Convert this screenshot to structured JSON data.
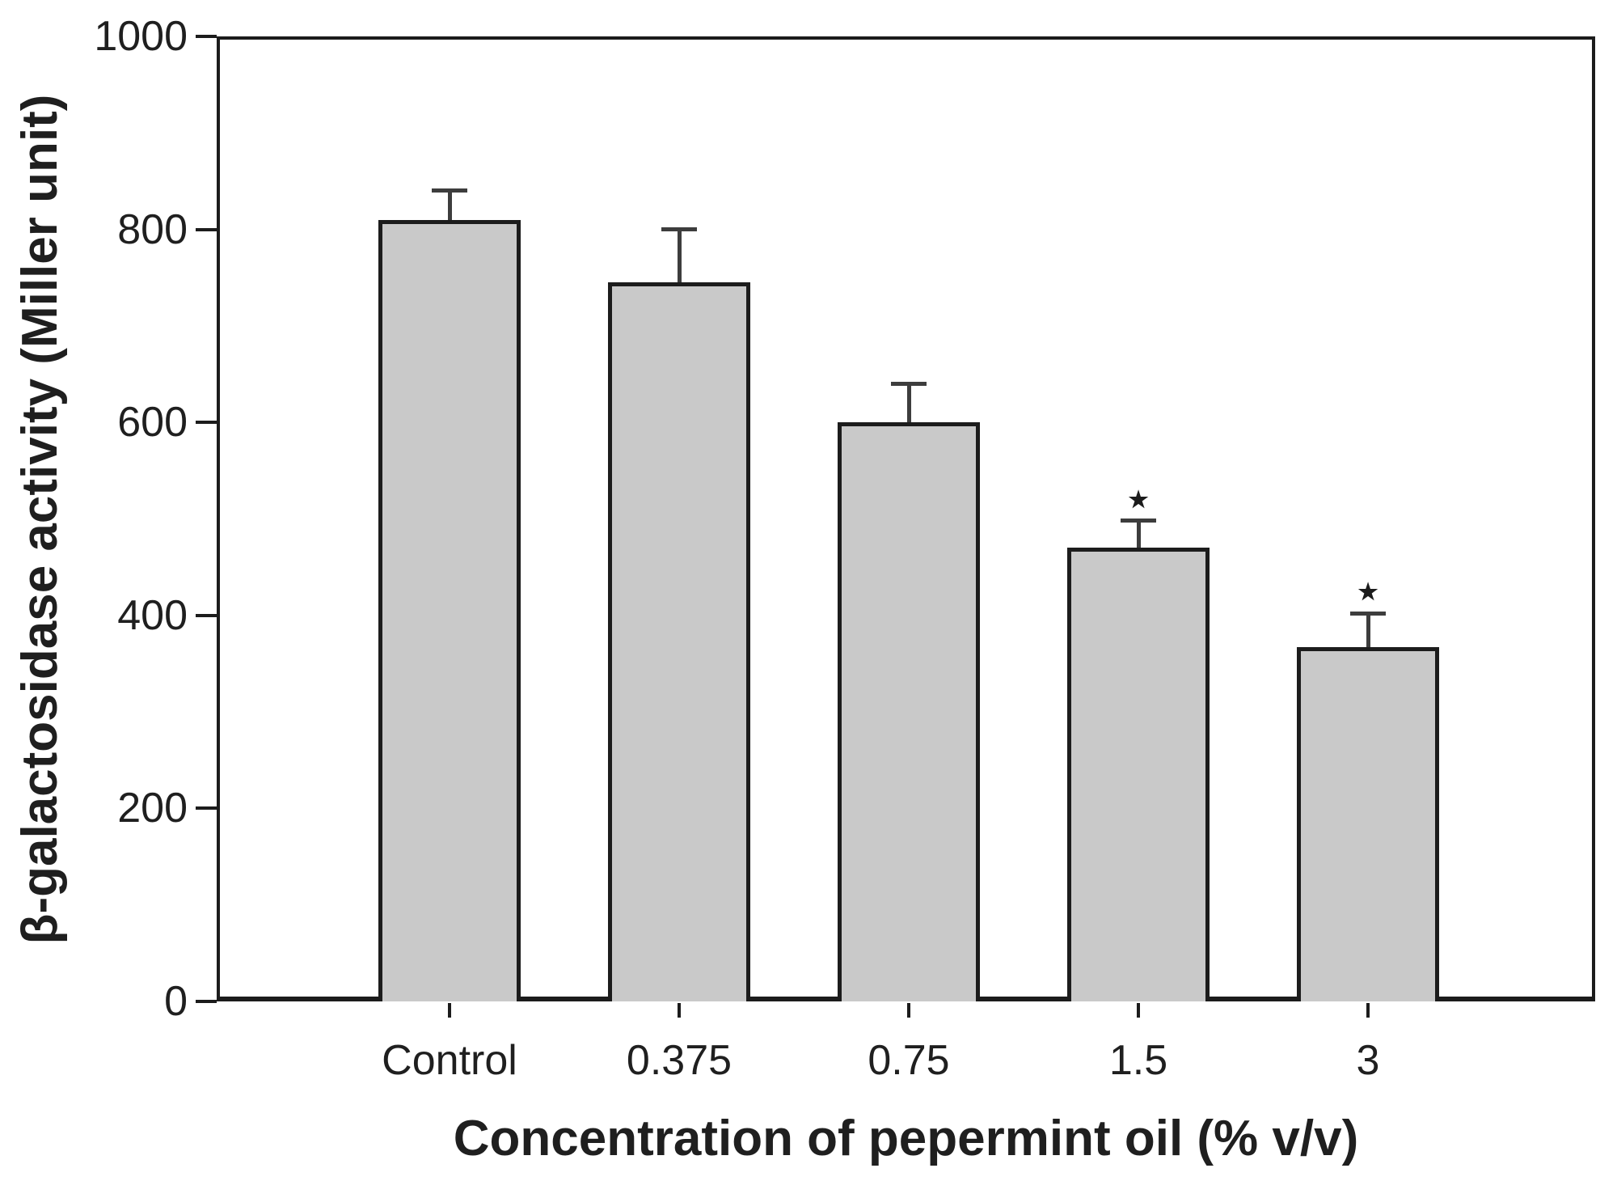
{
  "chart_data": {
    "type": "bar",
    "title": "",
    "xlabel": "Concentration of pepermint oil (% v/v)",
    "ylabel": "β-galactosidase activity (Miller unit)",
    "categories": [
      "Control",
      "0.375",
      "0.75",
      "1.5",
      "3"
    ],
    "values": [
      810,
      745,
      600,
      470,
      367
    ],
    "error_plus": [
      30,
      55,
      40,
      28,
      35
    ],
    "significance_markers": [
      "",
      "",
      "",
      "★",
      "★"
    ],
    "ylim": [
      0,
      1000
    ],
    "yticks": [
      0,
      200,
      400,
      600,
      800,
      1000
    ],
    "grid": false,
    "legend": null,
    "bar_fill_color": "#c9c9c9",
    "bar_border_color": "#1c1c1c",
    "axis_color": "#1c1c1c",
    "error_bar_color": "#3d3d3d",
    "text_color": "#1f1f1f",
    "background_color": "#ffffff"
  }
}
